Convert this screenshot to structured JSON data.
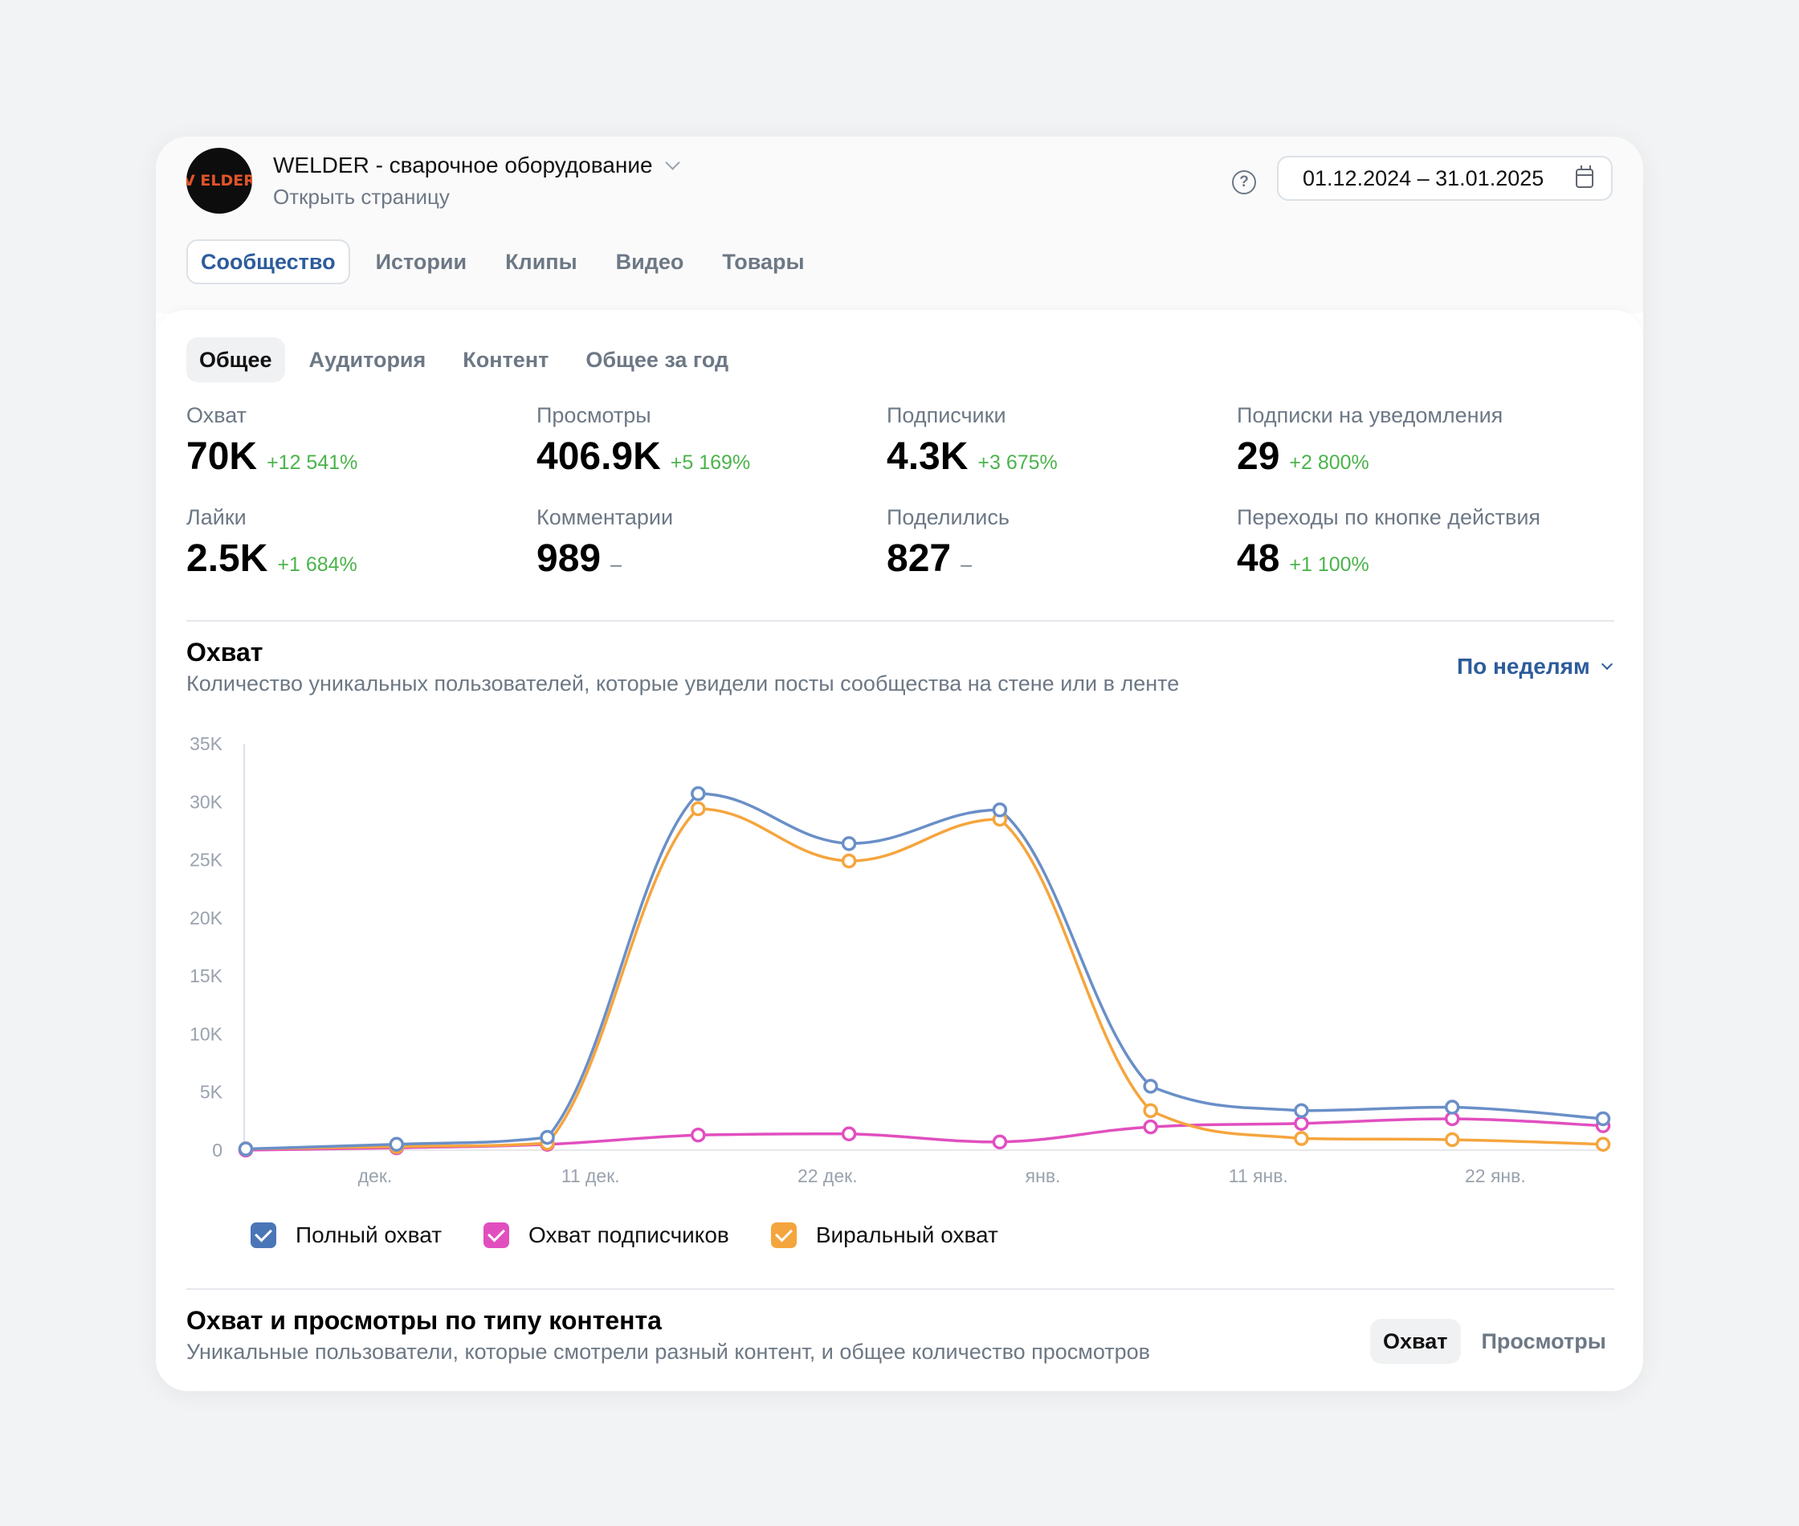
{
  "header": {
    "avatar_text": "V ELDER",
    "group_name": "WELDER - сварочное оборудование",
    "open_page_link": "Открыть страницу",
    "help_icon": "question-circle-icon",
    "date_range": "01.12.2024 – 31.01.2025",
    "calendar_icon": "calendar-icon"
  },
  "main_tabs": [
    {
      "label": "Сообщество",
      "active": true
    },
    {
      "label": "Истории",
      "active": false
    },
    {
      "label": "Клипы",
      "active": false
    },
    {
      "label": "Видео",
      "active": false
    },
    {
      "label": "Товары",
      "active": false
    }
  ],
  "sub_tabs": [
    {
      "label": "Общее",
      "active": true
    },
    {
      "label": "Аудитория",
      "active": false
    },
    {
      "label": "Контент",
      "active": false
    },
    {
      "label": "Общее за год",
      "active": false
    }
  ],
  "metrics": [
    {
      "label": "Охват",
      "value": "70K",
      "delta": "+12 541%"
    },
    {
      "label": "Просмотры",
      "value": "406.9K",
      "delta": "+5 169%"
    },
    {
      "label": "Подписчики",
      "value": "4.3K",
      "delta": "+3 675%"
    },
    {
      "label": "Подписки на уведомления",
      "value": "29",
      "delta": "+2 800%"
    },
    {
      "label": "Лайки",
      "value": "2.5K",
      "delta": "+1 684%"
    },
    {
      "label": "Комментарии",
      "value": "989",
      "delta": "–"
    },
    {
      "label": "Поделились",
      "value": "827",
      "delta": "–"
    },
    {
      "label": "Переходы по кнопке действия",
      "value": "48",
      "delta": "+1 100%"
    }
  ],
  "reach_section": {
    "title": "Охват",
    "subtitle": "Количество уникальных пользователей, которые увидели посты сообщества на стене или в ленте",
    "period_selector": "По неделям"
  },
  "chart_data": {
    "type": "line",
    "x": [
      "2024-11-25",
      "2024-12-02",
      "2024-12-09",
      "2024-12-16",
      "2024-12-23",
      "2024-12-30",
      "2025-01-06",
      "2025-01-13",
      "2025-01-20",
      "2025-01-27"
    ],
    "x_tick_labels": [
      "дек.",
      "11 дек.",
      "22 дек.",
      "янв.",
      "11 янв.",
      "22 янв."
    ],
    "y_tick_labels": [
      "0",
      "5K",
      "10K",
      "15K",
      "20K",
      "25K",
      "30K",
      "35K"
    ],
    "ylim": [
      0,
      35000
    ],
    "grid": false,
    "legend_position": "bottom-left",
    "series": [
      {
        "name": "Полный охват",
        "color": "#6a8fc7",
        "values": [
          100,
          500,
          1100,
          30700,
          26400,
          29300,
          5500,
          3400,
          3700,
          2700
        ]
      },
      {
        "name": "Охват подписчиков",
        "color": "#e14fbf",
        "values": [
          0,
          200,
          500,
          1300,
          1400,
          700,
          2000,
          2300,
          2700,
          2100
        ]
      },
      {
        "name": "Виральный охват",
        "color": "#f5a53d",
        "values": [
          100,
          300,
          600,
          29400,
          24900,
          28500,
          3400,
          1000,
          900,
          500
        ]
      }
    ]
  },
  "legend": [
    {
      "label": "Полный охват",
      "color": "#4a76b8"
    },
    {
      "label": "Охват подписчиков",
      "color": "#e14fbf"
    },
    {
      "label": "Виральный охват",
      "color": "#f5a53d"
    }
  ],
  "content_section": {
    "title": "Охват и просмотры по типу контента",
    "subtitle": "Уникальные пользователи, которые смотрели разный контент, и общее количество просмотров",
    "toggle": [
      {
        "label": "Охват",
        "active": true
      },
      {
        "label": "Просмотры",
        "active": false
      }
    ]
  }
}
